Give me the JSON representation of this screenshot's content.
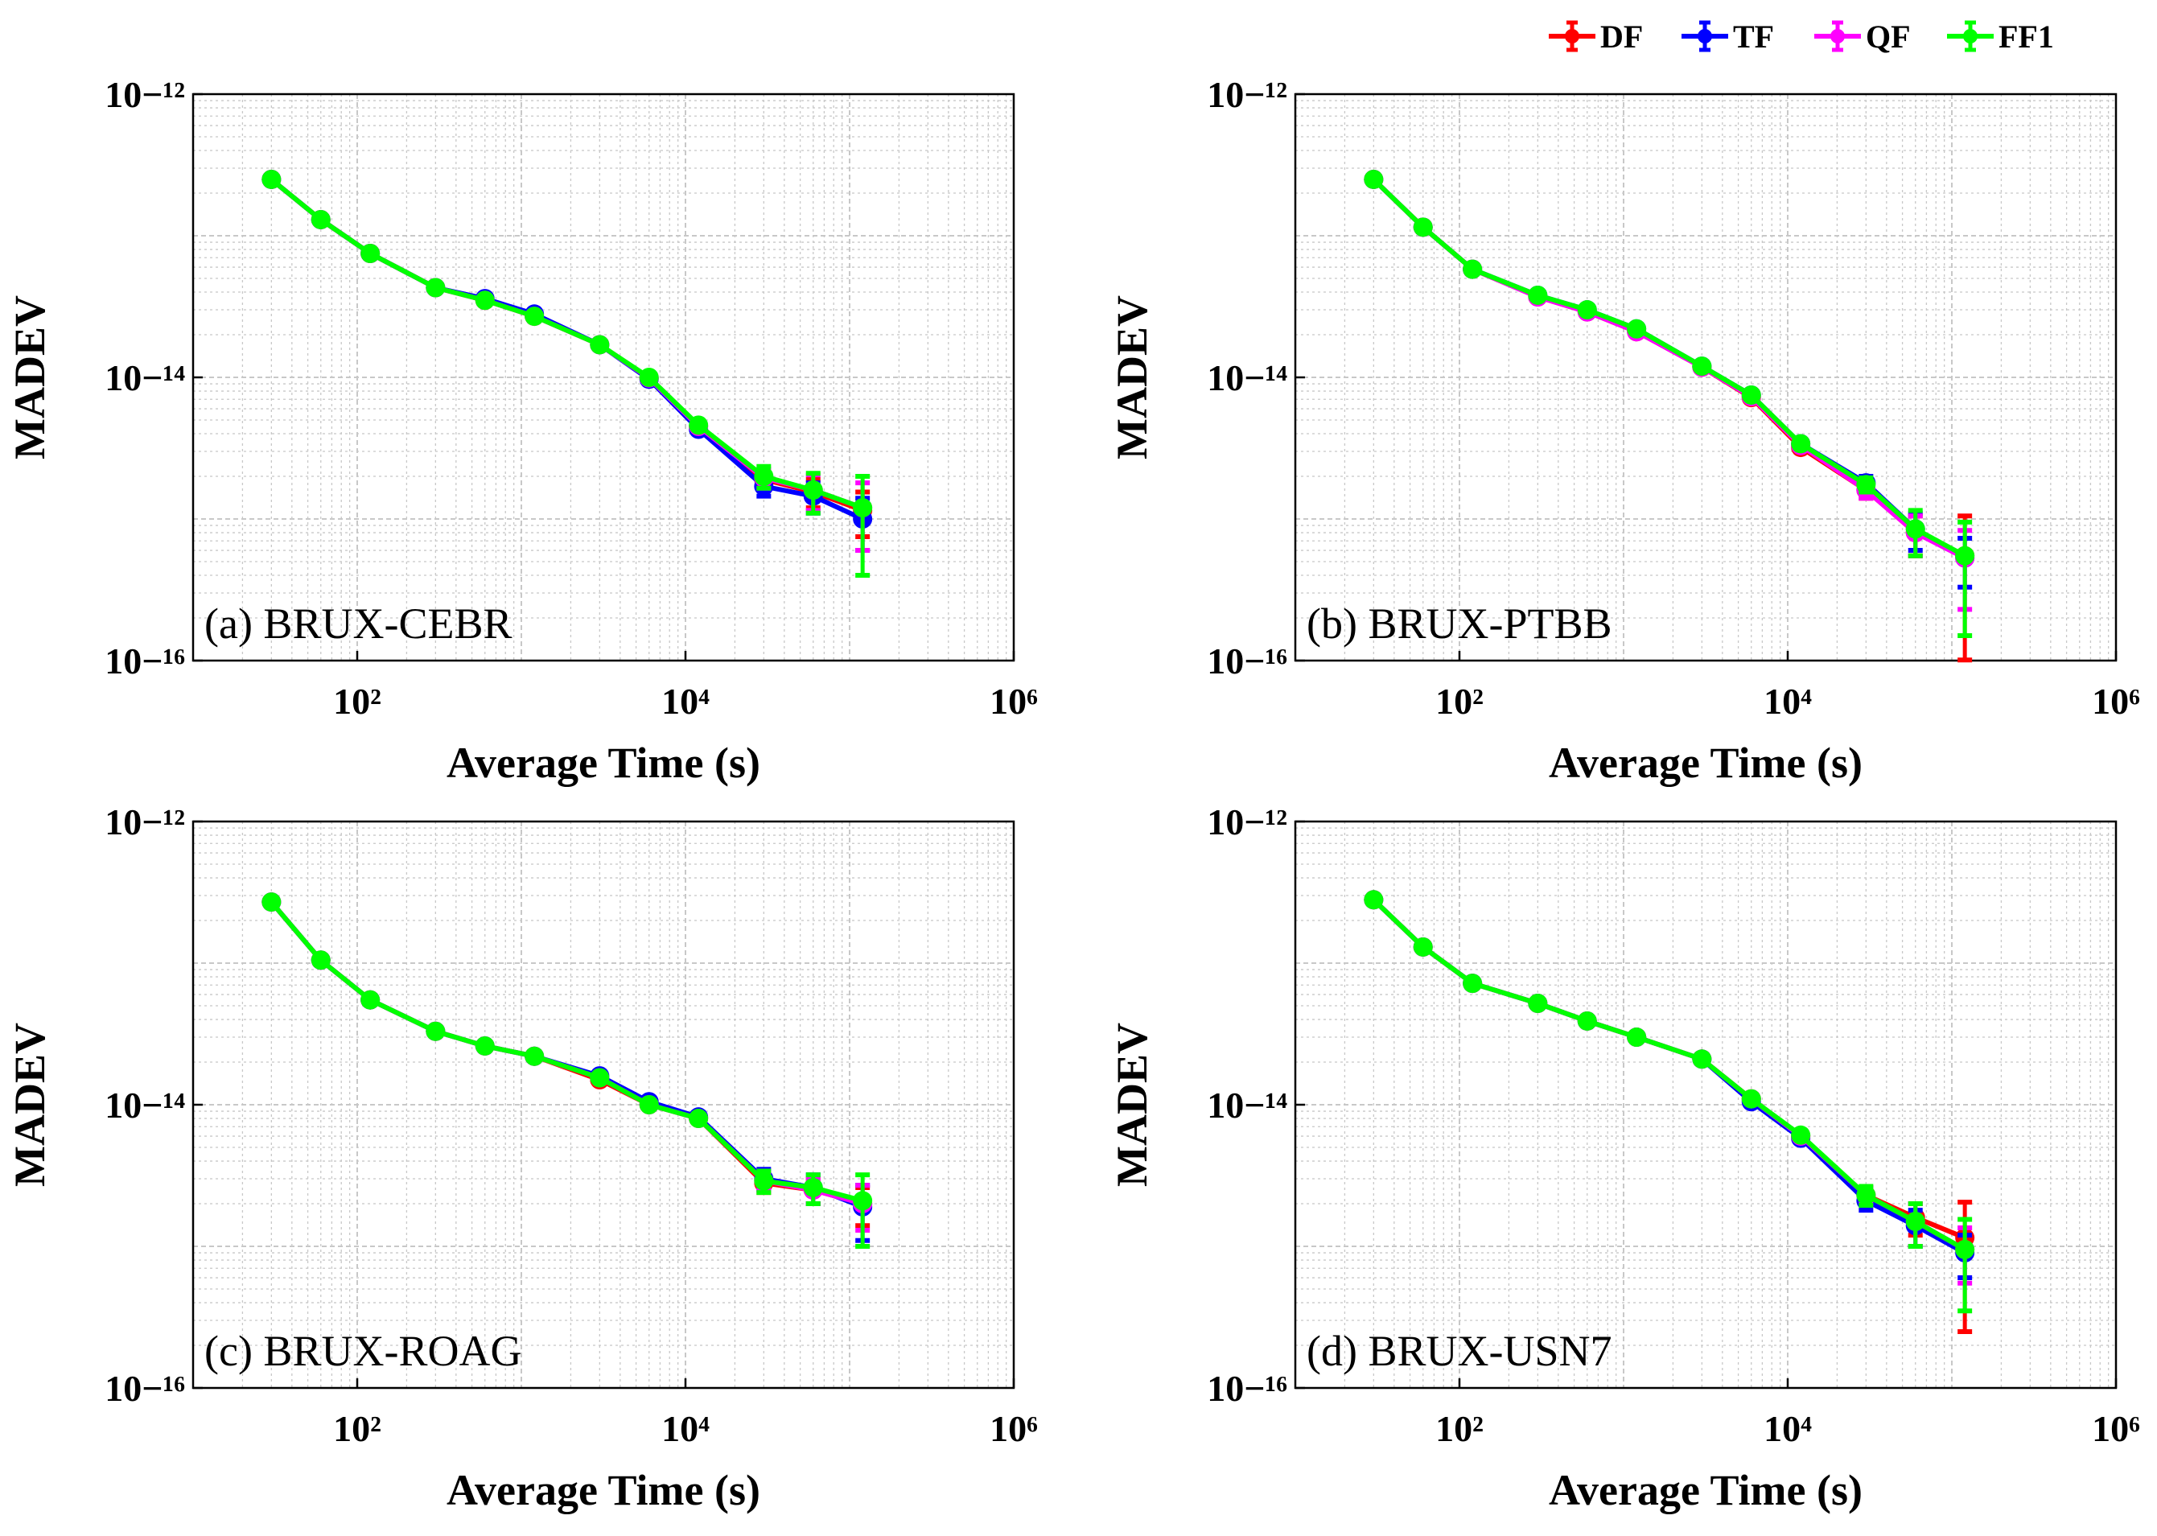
{
  "legend": [
    {
      "name": "DF",
      "color": "#ff0000"
    },
    {
      "name": "TF",
      "color": "#0000ff"
    },
    {
      "name": "QF",
      "color": "#ff00ff"
    },
    {
      "name": "FF1",
      "color": "#00ff00"
    }
  ],
  "chart_data": [
    {
      "type": "line",
      "panel_label": "(a) BRUX-CEBR",
      "xlabel": "Average Time (s)",
      "ylabel": "MADEV",
      "xscale": "log",
      "yscale": "log",
      "xlim": [
        10,
        1000000
      ],
      "ylim": [
        1e-16,
        1e-12
      ],
      "grid": true,
      "x": [
        30,
        60,
        120,
        300,
        600,
        1200,
        3000,
        6000,
        12000,
        30000,
        60000,
        120000
      ],
      "series": [
        {
          "name": "DF",
          "values": [
            2.5e-13,
            1.3e-13,
            7.5e-14,
            4.3e-14,
            3.5e-14,
            2.7e-14,
            1.7e-14,
            9.9e-15,
            4.5e-15,
            1.9e-15,
            1.55e-15,
            1.15e-15
          ],
          "err": [
            0,
            0,
            0,
            0,
            0,
            0,
            0,
            0,
            0,
            2.5e-16,
            3.5e-16,
            4e-16
          ]
        },
        {
          "name": "TF",
          "values": [
            2.5e-13,
            1.3e-13,
            7.5e-14,
            4.3e-14,
            3.6e-14,
            2.8e-14,
            1.7e-14,
            9.7e-15,
            4.3e-15,
            1.7e-15,
            1.45e-15,
            1e-15
          ],
          "err": [
            0,
            0,
            0,
            0,
            0,
            0,
            0,
            0,
            0,
            2.5e-16,
            3.5e-16,
            4e-16
          ]
        },
        {
          "name": "QF",
          "values": [
            2.5e-13,
            1.3e-13,
            7.5e-14,
            4.3e-14,
            3.5e-14,
            2.7e-14,
            1.7e-14,
            9.9e-15,
            4.5e-15,
            1.95e-15,
            1.6e-15,
            1.2e-15
          ],
          "err": [
            0,
            0,
            0,
            0,
            0,
            0,
            0,
            0,
            0,
            3e-16,
            4.5e-16,
            6e-16
          ]
        },
        {
          "name": "FF1",
          "values": [
            2.5e-13,
            1.3e-13,
            7.5e-14,
            4.3e-14,
            3.5e-14,
            2.7e-14,
            1.7e-14,
            1e-14,
            4.6e-15,
            2e-15,
            1.6e-15,
            1.2e-15
          ],
          "err": [
            0,
            0,
            0,
            0,
            0,
            0,
            0,
            0,
            0,
            3.5e-16,
            5e-16,
            8e-16
          ]
        }
      ]
    },
    {
      "type": "line",
      "panel_label": "(b) BRUX-PTBB",
      "xlabel": "Average Time (s)",
      "ylabel": "MADEV",
      "xscale": "log",
      "yscale": "log",
      "xlim": [
        10,
        1000000
      ],
      "ylim": [
        1e-16,
        1e-12
      ],
      "grid": true,
      "x": [
        30,
        60,
        120,
        300,
        600,
        1200,
        3000,
        6000,
        12000,
        30000,
        60000,
        120000
      ],
      "series": [
        {
          "name": "DF",
          "values": [
            2.5e-13,
            1.15e-13,
            5.8e-14,
            3.7e-14,
            2.9e-14,
            2.1e-14,
            1.18e-14,
            7.2e-15,
            3.2e-15,
            1.6e-15,
            8e-16,
            5.5e-16
          ],
          "err": [
            0,
            0,
            0,
            0,
            0,
            0,
            0,
            0,
            0,
            2e-16,
            2.5e-16,
            5e-16
          ]
        },
        {
          "name": "TF",
          "values": [
            2.5e-13,
            1.15e-13,
            5.8e-14,
            3.8e-14,
            3e-14,
            2.2e-14,
            1.2e-14,
            7.5e-15,
            3.4e-15,
            1.8e-15,
            8.5e-16,
            5.3e-16
          ],
          "err": [
            0,
            0,
            0,
            0,
            0,
            0,
            0,
            0,
            0,
            2e-16,
            2.5e-16,
            2e-16
          ]
        },
        {
          "name": "QF",
          "values": [
            2.5e-13,
            1.15e-13,
            5.8e-14,
            3.7e-14,
            2.9e-14,
            2.1e-14,
            1.18e-14,
            7.3e-15,
            3.3e-15,
            1.6e-15,
            8e-16,
            5.3e-16
          ],
          "err": [
            0,
            0,
            0,
            0,
            0,
            0,
            0,
            0,
            0,
            2e-16,
            2.5e-16,
            3e-16
          ]
        },
        {
          "name": "FF1",
          "values": [
            2.5e-13,
            1.15e-13,
            5.8e-14,
            3.8e-14,
            3e-14,
            2.2e-14,
            1.2e-14,
            7.5e-15,
            3.4e-15,
            1.75e-15,
            8.5e-16,
            5.5e-16
          ],
          "err": [
            0,
            0,
            0,
            0,
            0,
            0,
            0,
            0,
            0,
            2e-16,
            3e-16,
            4e-16
          ]
        }
      ]
    },
    {
      "type": "line",
      "panel_label": "(c) BRUX-ROAG",
      "xlabel": "Average Time (s)",
      "ylabel": "MADEV",
      "xscale": "log",
      "yscale": "log",
      "xlim": [
        10,
        1000000
      ],
      "ylim": [
        1e-16,
        1e-12
      ],
      "grid": true,
      "x": [
        30,
        60,
        120,
        300,
        600,
        1200,
        3000,
        6000,
        12000,
        30000,
        60000,
        120000
      ],
      "series": [
        {
          "name": "DF",
          "values": [
            2.7e-13,
            1.05e-13,
            5.5e-14,
            3.3e-14,
            2.6e-14,
            2.2e-14,
            1.5e-14,
            1e-14,
            8e-15,
            2.8e-15,
            2.5e-15,
            2e-15
          ],
          "err": [
            0,
            0,
            0,
            0,
            0,
            0,
            0,
            0,
            0,
            4e-16,
            5e-16,
            6e-16
          ]
        },
        {
          "name": "TF",
          "values": [
            2.7e-13,
            1.05e-13,
            5.5e-14,
            3.3e-14,
            2.6e-14,
            2.2e-14,
            1.6e-14,
            1.05e-14,
            8.2e-15,
            3e-15,
            2.6e-15,
            1.9e-15
          ],
          "err": [
            0,
            0,
            0,
            0,
            0,
            0,
            0,
            0,
            0,
            5e-16,
            6e-16,
            8e-16
          ]
        },
        {
          "name": "QF",
          "values": [
            2.7e-13,
            1.05e-13,
            5.5e-14,
            3.3e-14,
            2.6e-14,
            2.2e-14,
            1.55e-14,
            1e-14,
            8e-15,
            2.9e-15,
            2.5e-15,
            2e-15
          ],
          "err": [
            0,
            0,
            0,
            0,
            0,
            0,
            0,
            0,
            0,
            4e-16,
            5e-16,
            7e-16
          ]
        },
        {
          "name": "FF1",
          "values": [
            2.7e-13,
            1.05e-13,
            5.5e-14,
            3.3e-14,
            2.6e-14,
            2.2e-14,
            1.55e-14,
            1e-14,
            8e-15,
            2.9e-15,
            2.6e-15,
            2.1e-15
          ],
          "err": [
            0,
            0,
            0,
            0,
            0,
            0,
            0,
            0,
            0,
            5e-16,
            6e-16,
            1.1e-15
          ]
        }
      ]
    },
    {
      "type": "line",
      "panel_label": "(d) BRUX-USN7",
      "xlabel": "Average Time (s)",
      "ylabel": "MADEV",
      "xscale": "log",
      "yscale": "log",
      "xlim": [
        10,
        1000000
      ],
      "ylim": [
        1e-16,
        1e-12
      ],
      "grid": true,
      "x": [
        30,
        60,
        120,
        300,
        600,
        1200,
        3000,
        6000,
        12000,
        30000,
        60000,
        120000
      ],
      "series": [
        {
          "name": "DF",
          "values": [
            2.8e-13,
            1.3e-13,
            7.2e-14,
            5.2e-14,
            3.9e-14,
            3e-14,
            2.1e-14,
            1.1e-14,
            6e-15,
            2.3e-15,
            1.6e-15,
            1.15e-15
          ],
          "err": [
            0,
            0,
            0,
            0,
            0,
            0,
            0,
            0,
            0,
            3e-16,
            4e-16,
            9e-16
          ]
        },
        {
          "name": "TF",
          "values": [
            2.8e-13,
            1.3e-13,
            7.2e-14,
            5.2e-14,
            3.9e-14,
            3e-14,
            2.1e-14,
            1.05e-14,
            5.8e-15,
            2.1e-15,
            1.4e-15,
            9e-16
          ],
          "err": [
            0,
            0,
            0,
            0,
            0,
            0,
            0,
            0,
            0,
            3e-16,
            4e-16,
            3e-16
          ]
        },
        {
          "name": "QF",
          "values": [
            2.8e-13,
            1.3e-13,
            7.2e-14,
            5.2e-14,
            3.9e-14,
            3e-14,
            2.1e-14,
            1.1e-14,
            6e-15,
            2.3e-15,
            1.5e-15,
            9.5e-16
          ],
          "err": [
            0,
            0,
            0,
            0,
            0,
            0,
            0,
            0,
            0,
            3e-16,
            5e-16,
            4e-16
          ]
        },
        {
          "name": "FF1",
          "values": [
            2.8e-13,
            1.3e-13,
            7.2e-14,
            5.2e-14,
            3.9e-14,
            3e-14,
            2.1e-14,
            1.1e-14,
            6.1e-15,
            2.3e-15,
            1.5e-15,
            9.5e-16
          ],
          "err": [
            0,
            0,
            0,
            0,
            0,
            0,
            0,
            0,
            0,
            3.5e-16,
            5e-16,
            6e-16
          ]
        }
      ]
    }
  ]
}
